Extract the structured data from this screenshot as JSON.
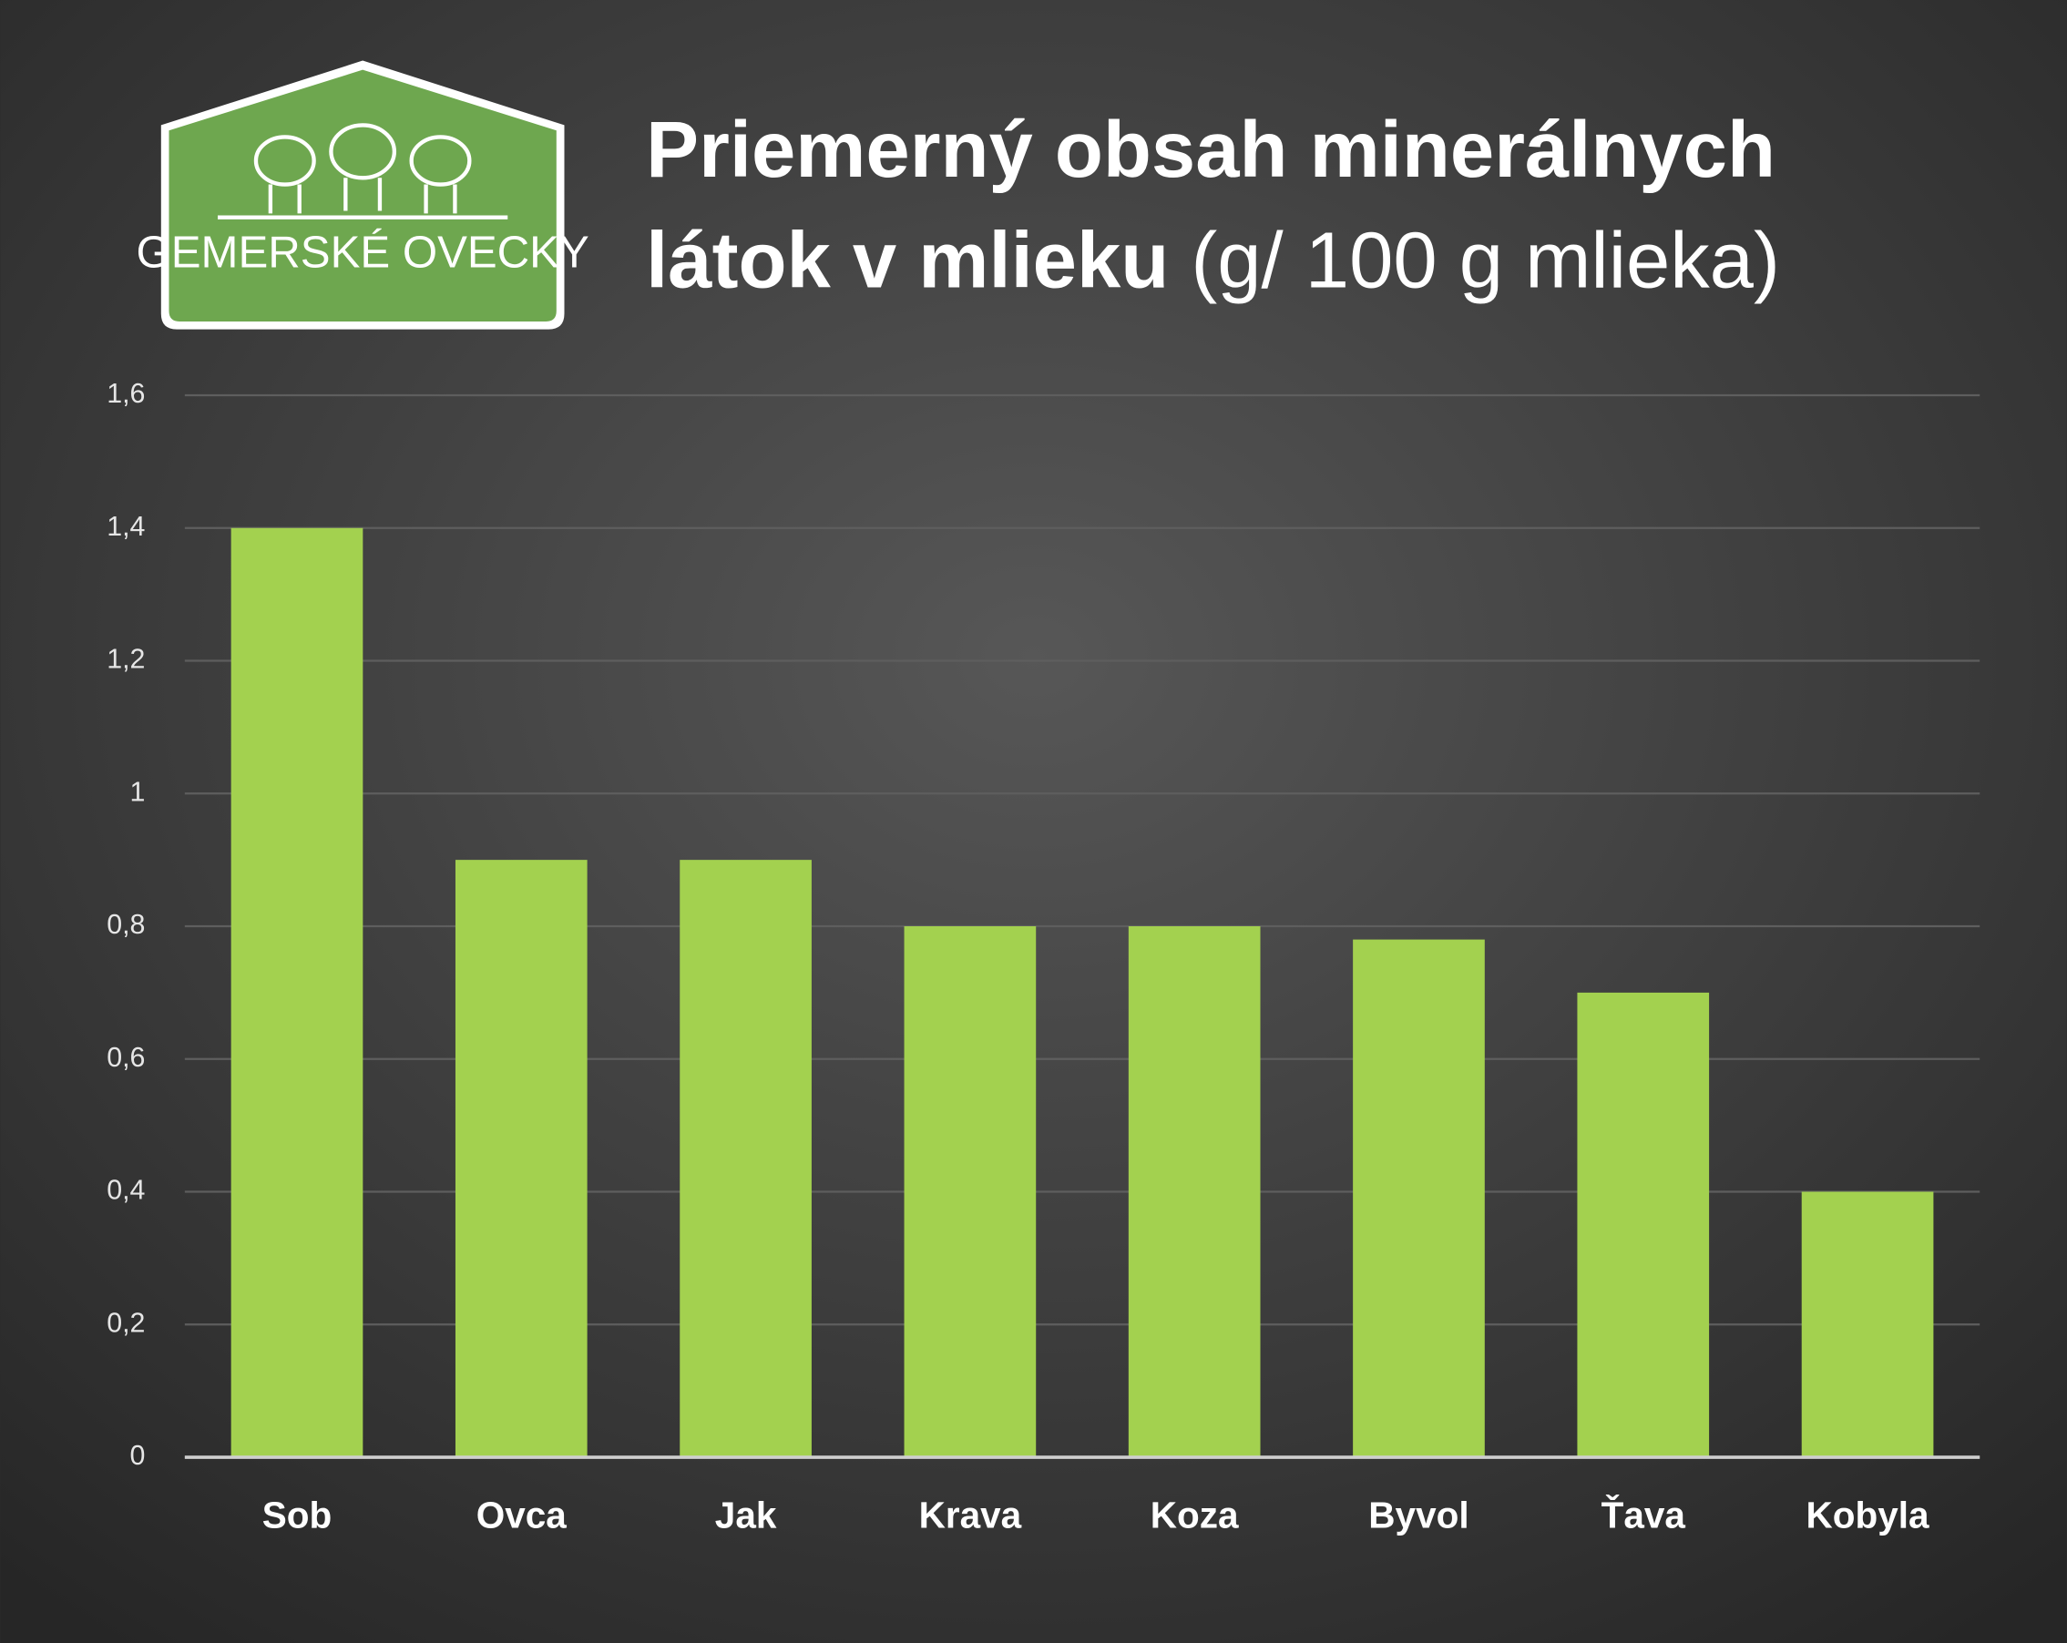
{
  "logo_text": "GEMERSKÉ OVECKY",
  "chart_data": {
    "type": "bar",
    "title": "Priemerný obsah minerálnych látok v mlieku",
    "subtitle": "(g/ 100 g mlieka)",
    "categories": [
      "Sob",
      "Ovca",
      "Jak",
      "Krava",
      "Koza",
      "Byvol",
      "Ťava",
      "Kobyla"
    ],
    "values": [
      1.4,
      0.9,
      0.9,
      0.8,
      0.8,
      0.78,
      0.7,
      0.4
    ],
    "color": "#a3d14f",
    "ylim": [
      0,
      1.6
    ],
    "yticks": [
      0,
      {
        "value": 0.2,
        "label": "0,2"
      },
      {
        "value": 0.4,
        "label": "0,4"
      },
      {
        "value": 0.6,
        "label": "0,6"
      },
      {
        "value": 0.8,
        "label": "0,8"
      },
      1,
      {
        "value": 1.2,
        "label": "1,2"
      },
      {
        "value": 1.4,
        "label": "1,4"
      },
      {
        "value": 1.6,
        "label": "1,6"
      }
    ],
    "grid": true
  }
}
